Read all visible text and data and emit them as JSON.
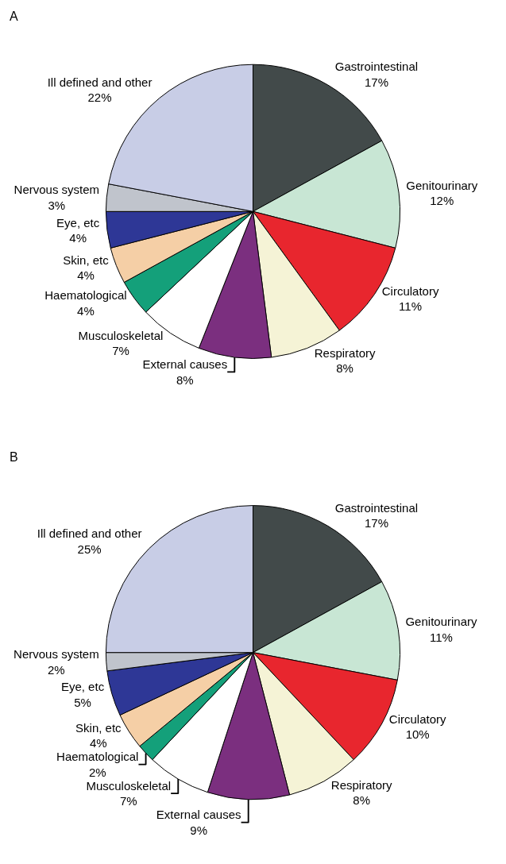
{
  "chart_data": [
    {
      "type": "pie",
      "title": "A",
      "categories": [
        "Gastrointestinal",
        "Genitourinary",
        "Circulatory",
        "Respiratory",
        "External causes",
        "Musculoskeletal",
        "Haematological",
        "Skin, etc",
        "Eye, etc",
        "Nervous system",
        "Ill defined and other"
      ],
      "values": [
        17,
        12,
        11,
        8,
        8,
        7,
        4,
        4,
        4,
        3,
        22
      ],
      "value_labels": [
        "17%",
        "12%",
        "11%",
        "8%",
        "8%",
        "7%",
        "4%",
        "4%",
        "4%",
        "3%",
        "22%"
      ],
      "colors": [
        "#424a4a",
        "#c8e6d4",
        "#e8262e",
        "#f5f3d6",
        "#7b2f7f",
        "#ffffff",
        "#14a07a",
        "#f5cfa6",
        "#2e3796",
        "#c0c4cc",
        "#c8cde6"
      ],
      "legend": false
    },
    {
      "type": "pie",
      "title": "B",
      "categories": [
        "Gastrointestinal",
        "Genitourinary",
        "Circulatory",
        "Respiratory",
        "External causes",
        "Musculoskeletal",
        "Haematological",
        "Skin, etc",
        "Eye, etc",
        "Nervous system",
        "Ill defined and other"
      ],
      "values": [
        17,
        11,
        10,
        8,
        9,
        7,
        2,
        4,
        5,
        2,
        25
      ],
      "value_labels": [
        "17%",
        "11%",
        "10%",
        "8%",
        "9%",
        "7%",
        "2%",
        "4%",
        "5%",
        "2%",
        "25%"
      ],
      "colors": [
        "#424a4a",
        "#c8e6d4",
        "#e8262e",
        "#f5f3d6",
        "#7b2f7f",
        "#ffffff",
        "#14a07a",
        "#f5cfa6",
        "#2e3796",
        "#c0c4cc",
        "#c8cde6"
      ],
      "legend": false
    }
  ]
}
